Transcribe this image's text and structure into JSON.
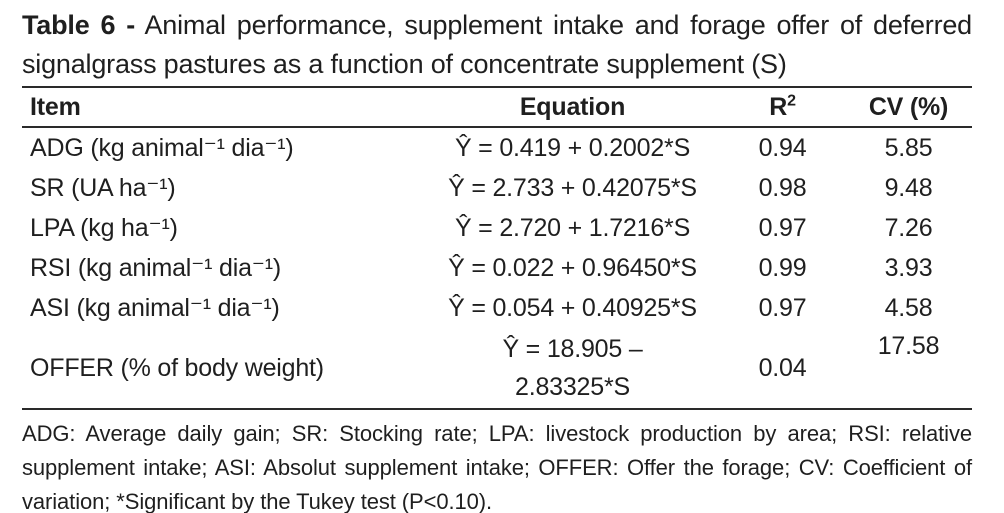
{
  "title": {
    "bold": "Table 6 -",
    "line1_rest": "Animal performance, supplement intake and forage offer of deferred",
    "line2": "signalgrass pastures as a function of concentrate supplement (S)"
  },
  "table": {
    "headers": {
      "item": "Item",
      "equation": "Equation",
      "r2_base": "R",
      "r2_sup": "2",
      "cv": "CV (%)"
    },
    "rows": [
      {
        "item": "ADG (kg animal⁻¹ dia⁻¹)",
        "equation": "Ŷ = 0.419 + 0.2002*S",
        "r2": "0.94",
        "cv": "5.85"
      },
      {
        "item": "SR (UA ha⁻¹)",
        "equation": "Ŷ = 2.733 + 0.42075*S",
        "r2": "0.98",
        "cv": "9.48"
      },
      {
        "item": "LPA (kg ha⁻¹)",
        "equation": "Ŷ = 2.720 + 1.7216*S",
        "r2": "0.97",
        "cv": "7.26"
      },
      {
        "item": "RSI (kg animal⁻¹ dia⁻¹)",
        "equation": "Ŷ = 0.022 + 0.96450*S",
        "r2": "0.99",
        "cv": "3.93"
      },
      {
        "item": "ASI (kg animal⁻¹ dia⁻¹)",
        "equation": "Ŷ = 0.054 + 0.40925*S",
        "r2": "0.97",
        "cv": "4.58"
      },
      {
        "item": "OFFER (% of body weight)",
        "equation": "Ŷ = 18.905 –\n2.83325*S",
        "r2": "0.04",
        "cv": "17.58"
      }
    ]
  },
  "footnote": {
    "lines": [
      "ADG: Average daily gain; SR: Stocking rate; LPA: livestock production by area; RSI: relative",
      "supplement intake; ASI: Absolut supplement intake; OFFER: Offer the forage; CV: Coefficient of",
      "variation; *Significant by the Tukey test (P<0.10)."
    ]
  },
  "colors": {
    "text": "#1f1f1f",
    "rule": "#2a2a2a",
    "background": "#ffffff"
  }
}
